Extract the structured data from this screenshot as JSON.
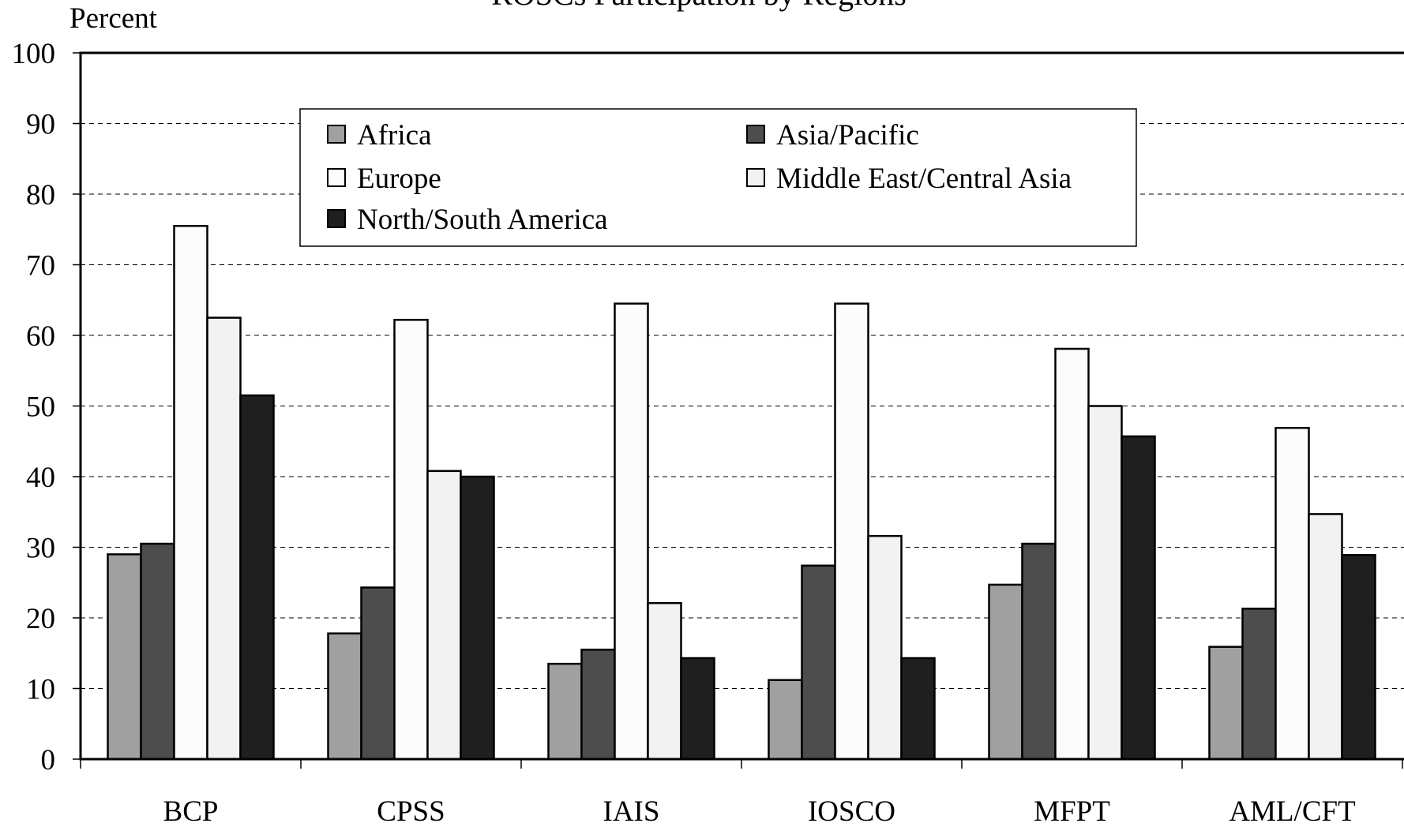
{
  "chart_data": {
    "type": "bar",
    "title": "ROSCs Participation by Regions",
    "ylabel": "Percent",
    "xlabel": "",
    "ylim": [
      0,
      100
    ],
    "yticks": [
      0,
      10,
      20,
      30,
      40,
      50,
      60,
      70,
      80,
      90,
      100
    ],
    "grid": true,
    "legend_position": "top-center",
    "categories": [
      "BCP",
      "CPSS",
      "IAIS",
      "IOSCO",
      "MFPT",
      "AML/CFT"
    ],
    "series": [
      {
        "name": "Africa",
        "color": "#a0a0a0",
        "values": [
          29,
          17.8,
          13.5,
          11.2,
          24.7,
          15.9
        ]
      },
      {
        "name": "Asia/Pacific",
        "color": "#4d4d4d",
        "values": [
          30.5,
          24.3,
          15.5,
          27.4,
          30.5,
          21.3
        ]
      },
      {
        "name": "Europe",
        "color": "#fcfcfc",
        "values": [
          75.5,
          62.2,
          64.5,
          64.5,
          58.1,
          46.9
        ]
      },
      {
        "name": "Middle East/Central Asia",
        "color": "#f2f2f2",
        "values": [
          62.5,
          40.8,
          22.1,
          31.6,
          50.0,
          34.7
        ]
      },
      {
        "name": "North/South America",
        "color": "#1f1f1f",
        "values": [
          51.5,
          40.0,
          14.3,
          14.3,
          45.7,
          28.9
        ]
      }
    ]
  }
}
